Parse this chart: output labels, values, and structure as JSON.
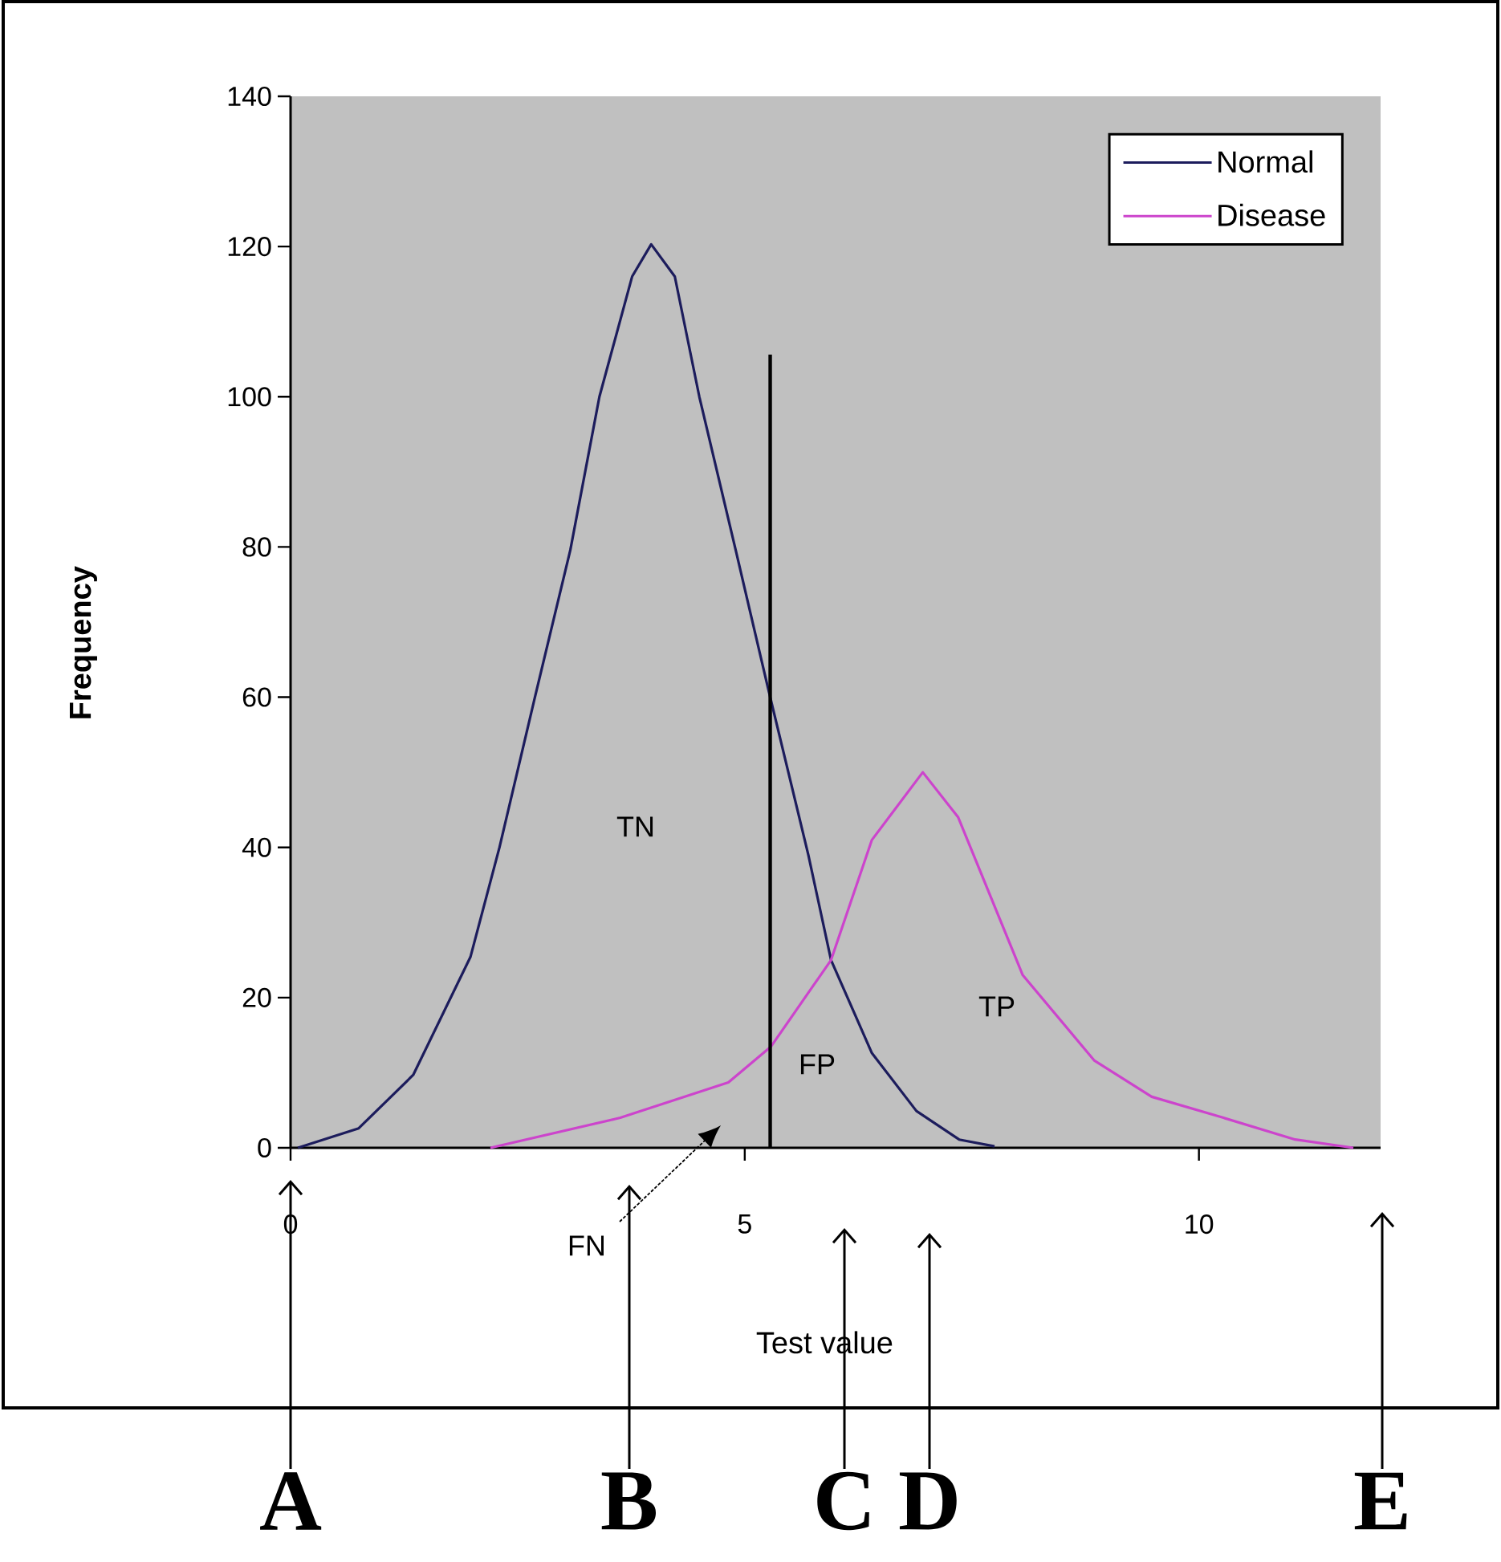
{
  "chart_data": {
    "type": "line",
    "xlabel": "Test value",
    "ylabel": "Frequency",
    "xlim": [
      0,
      12
    ],
    "ylim": [
      0,
      140
    ],
    "xticks": [
      0,
      5,
      10
    ],
    "yticks": [
      0,
      20,
      40,
      60,
      80,
      100,
      120,
      140
    ],
    "grid": false,
    "legend": "top right",
    "marker": "none",
    "line_style": "solid",
    "series": [
      {
        "name": "Normal",
        "color": "#1c1c5c",
        "x": [
          0.08,
          0.75,
          1.35,
          1.98,
          2.3,
          2.69,
          3.08,
          3.4,
          3.76,
          3.97,
          4.23,
          4.5,
          4.9,
          5.26,
          5.7,
          5.95,
          6.4,
          6.89,
          7.36,
          7.75
        ],
        "values": [
          0,
          2.6,
          9.7,
          25.4,
          40,
          60,
          79.6,
          100,
          116,
          120.3,
          116,
          100,
          79.6,
          61,
          39,
          25,
          12.6,
          4.9,
          1.1,
          0.2
        ]
      },
      {
        "name": "Disease",
        "color": "#cc44cc",
        "x": [
          2.2,
          3.63,
          4.82,
          5.29,
          5.95,
          6.4,
          6.96,
          7.35,
          8.06,
          8.85,
          9.48,
          10.27,
          11.06,
          11.7
        ],
        "values": [
          0,
          4,
          8.7,
          13.5,
          25,
          41,
          50,
          44,
          23,
          11.6,
          6.8,
          4,
          1.1,
          0
        ]
      },
      {
        "color": "#000000",
        "x": [
          5.28,
          5.28
        ],
        "values": [
          0,
          105.6
        ]
      }
    ],
    "annotations": [
      "TN",
      "FP",
      "TP",
      "FN",
      "A",
      "B",
      "C",
      "D",
      "E"
    ]
  }
}
